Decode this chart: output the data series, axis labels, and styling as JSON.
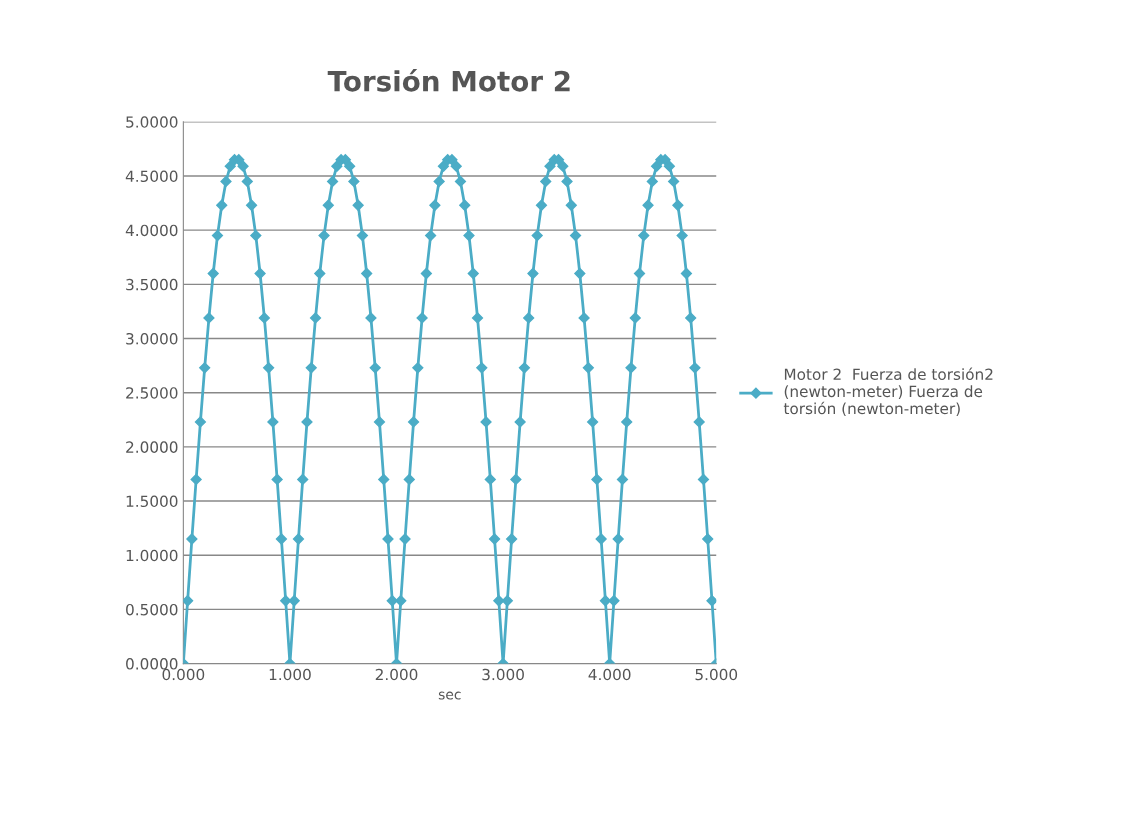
{
  "chart_data": {
    "type": "line",
    "title": "Torsión Motor 2",
    "xlabel": "sec",
    "x": [
      0,
      0.04,
      0.08,
      0.12,
      0.16,
      0.2,
      0.24,
      0.28,
      0.32,
      0.36,
      0.4,
      0.44,
      0.48,
      0.52,
      0.56,
      0.6,
      0.64,
      0.68,
      0.72,
      0.76,
      0.8,
      0.84,
      0.88,
      0.92,
      0.96,
      1,
      1.04,
      1.08,
      1.12,
      1.16,
      1.2,
      1.24,
      1.28,
      1.32,
      1.36,
      1.4,
      1.44,
      1.48,
      1.52,
      1.56,
      1.6,
      1.64,
      1.68,
      1.72,
      1.76,
      1.8,
      1.84,
      1.88,
      1.92,
      1.96,
      2,
      2.04,
      2.08,
      2.12,
      2.16,
      2.2,
      2.24,
      2.28,
      2.32,
      2.36,
      2.4,
      2.44,
      2.48,
      2.52,
      2.56,
      2.6,
      2.64,
      2.68,
      2.72,
      2.76,
      2.8,
      2.84,
      2.88,
      2.92,
      2.96,
      3,
      3.04,
      3.08,
      3.12,
      3.16,
      3.2,
      3.24,
      3.28,
      3.32,
      3.36,
      3.4,
      3.44,
      3.48,
      3.52,
      3.56,
      3.6,
      3.64,
      3.68,
      3.72,
      3.76,
      3.8,
      3.84,
      3.88,
      3.92,
      3.96,
      4,
      4.04,
      4.08,
      4.12,
      4.16,
      4.2,
      4.24,
      4.28,
      4.32,
      4.36,
      4.4,
      4.44,
      4.48,
      4.52,
      4.56,
      4.6,
      4.64,
      4.68,
      4.72,
      4.76,
      4.8,
      4.84,
      4.88,
      4.92,
      4.96,
      5
    ],
    "series": [
      {
        "name": "Motor 2  Fuerza de torsión2\n(newton-meter) Fuerza de\ntorsión (newton-meter)",
        "color": "#4bacc6",
        "values": [
          0,
          0.58,
          1.15,
          1.7,
          2.23,
          2.73,
          3.19,
          3.6,
          3.95,
          4.23,
          4.45,
          4.59,
          4.65,
          4.65,
          4.59,
          4.45,
          4.23,
          3.95,
          3.6,
          3.19,
          2.73,
          2.23,
          1.7,
          1.15,
          0.58,
          0,
          0.58,
          1.15,
          1.7,
          2.23,
          2.73,
          3.19,
          3.6,
          3.95,
          4.23,
          4.45,
          4.59,
          4.65,
          4.65,
          4.59,
          4.45,
          4.23,
          3.95,
          3.6,
          3.19,
          2.73,
          2.23,
          1.7,
          1.15,
          0.58,
          0,
          0.58,
          1.15,
          1.7,
          2.23,
          2.73,
          3.19,
          3.6,
          3.95,
          4.23,
          4.45,
          4.59,
          4.65,
          4.65,
          4.59,
          4.45,
          4.23,
          3.95,
          3.6,
          3.19,
          2.73,
          2.23,
          1.7,
          1.15,
          0.58,
          0,
          0.58,
          1.15,
          1.7,
          2.23,
          2.73,
          3.19,
          3.6,
          3.95,
          4.23,
          4.45,
          4.59,
          4.65,
          4.65,
          4.59,
          4.45,
          4.23,
          3.95,
          3.6,
          3.19,
          2.73,
          2.23,
          1.7,
          1.15,
          0.58,
          0,
          0.58,
          1.15,
          1.7,
          2.23,
          2.73,
          3.19,
          3.6,
          3.95,
          4.23,
          4.45,
          4.59,
          4.65,
          4.65,
          4.59,
          4.45,
          4.23,
          3.95,
          3.6,
          3.19,
          2.73,
          2.23,
          1.7,
          1.15,
          0.58,
          0
        ]
      }
    ],
    "xlim": [
      0,
      5
    ],
    "xticks": [
      {
        "value": 0,
        "label": "0.000"
      },
      {
        "value": 1,
        "label": "1.000"
      },
      {
        "value": 2,
        "label": "2.000"
      },
      {
        "value": 3,
        "label": "3.000"
      },
      {
        "value": 4,
        "label": "4.000"
      },
      {
        "value": 5,
        "label": "5.000"
      }
    ],
    "ylim": [
      0,
      5
    ],
    "yticks": [
      {
        "value": 0,
        "label": "0.0000"
      },
      {
        "value": 0.5,
        "label": "0.5000"
      },
      {
        "value": 1,
        "label": "1.0000"
      },
      {
        "value": 1.5,
        "label": "1.5000"
      },
      {
        "value": 2,
        "label": "2.0000"
      },
      {
        "value": 2.5,
        "label": "2.5000"
      },
      {
        "value": 3,
        "label": "3.0000"
      },
      {
        "value": 3.5,
        "label": "3.5000"
      },
      {
        "value": 4,
        "label": "4.0000"
      },
      {
        "value": 4.5,
        "label": "4.5000"
      },
      {
        "value": 5,
        "label": "5.0000"
      }
    ],
    "grid": "y",
    "legend": "right",
    "marker": "diamond",
    "line_style": "solid"
  }
}
